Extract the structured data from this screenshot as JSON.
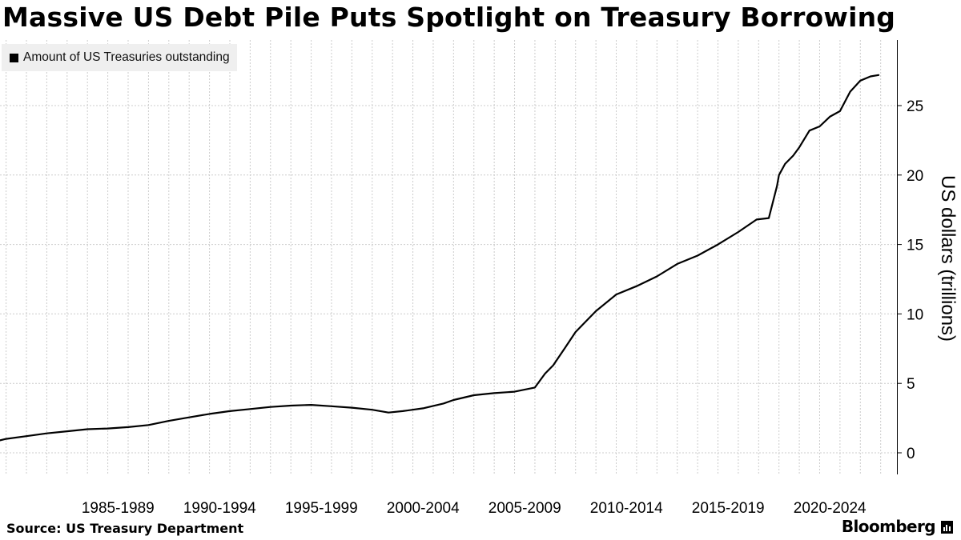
{
  "title": "Massive US Debt Pile Puts Spotlight on Treasury Borrowing",
  "source": "Source: US Treasury Department",
  "brand": "Bloomberg",
  "brand_icon": "bar-chart-icon",
  "colors": {
    "line": "#000000",
    "grid": "#cccccc",
    "legend_bg": "#efefef"
  },
  "chart_data": {
    "type": "line",
    "title": "Massive US Debt Pile Puts Spotlight on Treasury Borrowing",
    "ylabel": "US dollars (trillions)",
    "xlabel": "",
    "ylim": [
      -1.5,
      30
    ],
    "xlim": [
      1981.7,
      2025.8
    ],
    "y_ticks": [
      0,
      5,
      10,
      15,
      20,
      25
    ],
    "x_tick_labels": [
      "1985-1989",
      "1990-1994",
      "1995-1999",
      "2000-2004",
      "2005-2009",
      "2010-2014",
      "2015-2019",
      "2020-2024"
    ],
    "x_tick_groups": [
      [
        1985,
        1990
      ],
      [
        1990,
        1995
      ],
      [
        1995,
        2000
      ],
      [
        2000,
        2005
      ],
      [
        2005,
        2010
      ],
      [
        2010,
        2015
      ],
      [
        2015,
        2020
      ],
      [
        2020,
        2025
      ]
    ],
    "grid": true,
    "y_axis_side": "right",
    "legend_position": "top-left",
    "series": [
      {
        "name": "Amount of US Treasuries outstanding",
        "x": [
          1981.7,
          1982.0,
          1983.0,
          1984.0,
          1985.0,
          1986.0,
          1987.0,
          1988.0,
          1989.0,
          1990.0,
          1991.0,
          1992.0,
          1993.0,
          1994.0,
          1995.0,
          1996.0,
          1997.0,
          1998.0,
          1999.0,
          2000.0,
          2000.8,
          2001.5,
          2002.5,
          2003.5,
          2004.0,
          2005.0,
          2006.0,
          2007.0,
          2008.0,
          2008.5,
          2008.9,
          2009.5,
          2010.0,
          2011.0,
          2012.0,
          2013.0,
          2014.0,
          2015.0,
          2016.0,
          2017.0,
          2018.0,
          2018.9,
          2019.5,
          2019.9,
          2020.0,
          2020.3,
          2020.7,
          2021.0,
          2021.5,
          2022.0,
          2022.5,
          2023.0,
          2023.5,
          2024.0,
          2024.5,
          2024.9
        ],
        "values": [
          0.9,
          1.0,
          1.2,
          1.4,
          1.55,
          1.7,
          1.75,
          1.85,
          2.0,
          2.3,
          2.55,
          2.8,
          3.0,
          3.15,
          3.3,
          3.4,
          3.45,
          3.35,
          3.25,
          3.1,
          2.9,
          3.0,
          3.2,
          3.55,
          3.8,
          4.15,
          4.3,
          4.4,
          4.7,
          5.7,
          6.3,
          7.6,
          8.7,
          10.2,
          11.4,
          12.0,
          12.7,
          13.6,
          14.2,
          15.0,
          15.9,
          16.8,
          16.9,
          19.2,
          20.0,
          20.8,
          21.4,
          22.0,
          23.2,
          23.5,
          24.2,
          24.6,
          26.0,
          26.8,
          27.1,
          27.2
        ]
      }
    ]
  }
}
